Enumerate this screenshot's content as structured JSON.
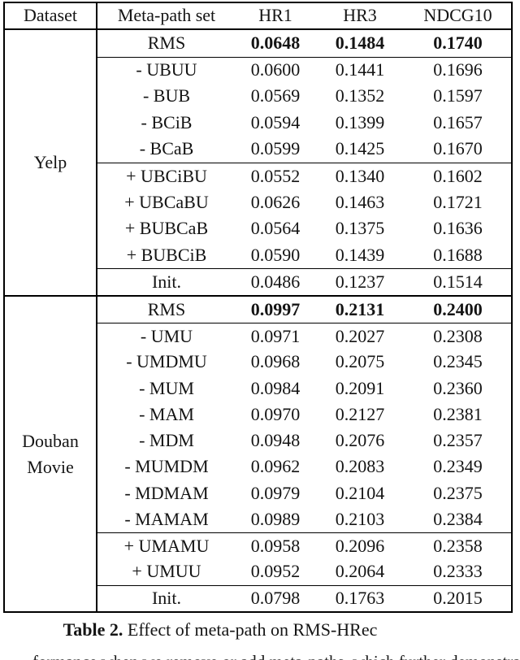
{
  "table": {
    "caption": {
      "label": "Table 2.",
      "text": " Effect of meta-path on RMS-HRec"
    },
    "columns": [
      "Dataset",
      "Meta-path set",
      "HR1",
      "HR3",
      "NDCG10"
    ],
    "sections": [
      {
        "dataset": "Yelp",
        "rows": [
          {
            "label": "RMS",
            "hr1": "0.0648",
            "hr3": "0.1484",
            "ndcg10": "0.1740",
            "bold_values": true,
            "rule_above": false
          },
          {
            "label": "- UBUU",
            "hr1": "0.0600",
            "hr3": "0.1441",
            "ndcg10": "0.1696",
            "bold_values": false,
            "rule_above": true
          },
          {
            "label": "- BUB",
            "hr1": "0.0569",
            "hr3": "0.1352",
            "ndcg10": "0.1597",
            "bold_values": false,
            "rule_above": false
          },
          {
            "label": "- BCiB",
            "hr1": "0.0594",
            "hr3": "0.1399",
            "ndcg10": "0.1657",
            "bold_values": false,
            "rule_above": false
          },
          {
            "label": "- BCaB",
            "hr1": "0.0599",
            "hr3": "0.1425",
            "ndcg10": "0.1670",
            "bold_values": false,
            "rule_above": false
          },
          {
            "label": "+ UBCiBU",
            "hr1": "0.0552",
            "hr3": "0.1340",
            "ndcg10": "0.1602",
            "bold_values": false,
            "rule_above": true
          },
          {
            "label": "+ UBCaBU",
            "hr1": "0.0626",
            "hr3": "0.1463",
            "ndcg10": "0.1721",
            "bold_values": false,
            "rule_above": false
          },
          {
            "label": "+ BUBCaB",
            "hr1": "0.0564",
            "hr3": "0.1375",
            "ndcg10": "0.1636",
            "bold_values": false,
            "rule_above": false
          },
          {
            "label": "+ BUBCiB",
            "hr1": "0.0590",
            "hr3": "0.1439",
            "ndcg10": "0.1688",
            "bold_values": false,
            "rule_above": false
          },
          {
            "label": "Init.",
            "hr1": "0.0486",
            "hr3": "0.1237",
            "ndcg10": "0.1514",
            "bold_values": false,
            "rule_above": true
          }
        ]
      },
      {
        "dataset": "Douban Movie",
        "rows": [
          {
            "label": "RMS",
            "hr1": "0.0997",
            "hr3": "0.2131",
            "ndcg10": "0.2400",
            "bold_values": true,
            "rule_above": false
          },
          {
            "label": "- UMU",
            "hr1": "0.0971",
            "hr3": "0.2027",
            "ndcg10": "0.2308",
            "bold_values": false,
            "rule_above": true
          },
          {
            "label": "- UMDMU",
            "hr1": "0.0968",
            "hr3": "0.2075",
            "ndcg10": "0.2345",
            "bold_values": false,
            "rule_above": false
          },
          {
            "label": "- MUM",
            "hr1": "0.0984",
            "hr3": "0.2091",
            "ndcg10": "0.2360",
            "bold_values": false,
            "rule_above": false
          },
          {
            "label": "- MAM",
            "hr1": "0.0970",
            "hr3": "0.2127",
            "ndcg10": "0.2381",
            "bold_values": false,
            "rule_above": false
          },
          {
            "label": "- MDM",
            "hr1": "0.0948",
            "hr3": "0.2076",
            "ndcg10": "0.2357",
            "bold_values": false,
            "rule_above": false
          },
          {
            "label": "- MUMDM",
            "hr1": "0.0962",
            "hr3": "0.2083",
            "ndcg10": "0.2349",
            "bold_values": false,
            "rule_above": false
          },
          {
            "label": "- MDMAM",
            "hr1": "0.0979",
            "hr3": "0.2104",
            "ndcg10": "0.2375",
            "bold_values": false,
            "rule_above": false
          },
          {
            "label": "- MAMAM",
            "hr1": "0.0989",
            "hr3": "0.2103",
            "ndcg10": "0.2384",
            "bold_values": false,
            "rule_above": false
          },
          {
            "label": "+ UMAMU",
            "hr1": "0.0958",
            "hr3": "0.2096",
            "ndcg10": "0.2358",
            "bold_values": false,
            "rule_above": true
          },
          {
            "label": "+ UMUU",
            "hr1": "0.0952",
            "hr3": "0.2064",
            "ndcg10": "0.2333",
            "bold_values": false,
            "rule_above": false
          },
          {
            "label": "Init.",
            "hr1": "0.0798",
            "hr3": "0.1763",
            "ndcg10": "0.2015",
            "bold_values": false,
            "rule_above": true
          }
        ]
      }
    ]
  },
  "clipped_line_text": "formance when we remove or add meta-paths, which further demonstrates the d",
  "colors": {
    "text": "#141414",
    "border": "#000000",
    "background": "#ffffff"
  }
}
